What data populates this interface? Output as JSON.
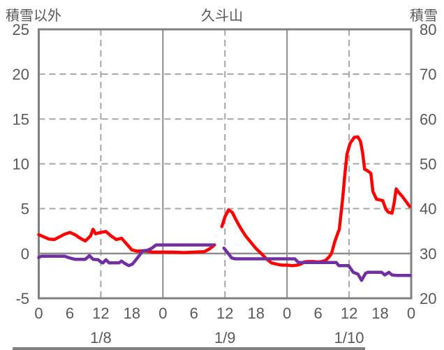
{
  "header": {
    "left_axis_title": "積雪以外",
    "title": "久斗山",
    "right_axis_title": "積雪"
  },
  "colors": {
    "red_series": "#ff0000",
    "purple_series": "#7030a0",
    "frame": "#808080",
    "grid_dashed": "#a6a6a6",
    "grid_solid": "#8c8c8c",
    "text": "#595959"
  },
  "chart_data": {
    "type": "line",
    "title": "久斗山",
    "left_axis": {
      "label": "積雪以外",
      "min": -5,
      "max": 25,
      "ticks": [
        25,
        20,
        15,
        10,
        5,
        0,
        -5
      ]
    },
    "right_axis": {
      "label": "積雪",
      "min": 20,
      "max": 80,
      "ticks": [
        80,
        70,
        60,
        50,
        40,
        30,
        20
      ]
    },
    "x_axis": {
      "total_hours": 72,
      "tick_hours": [
        0,
        6,
        12,
        18,
        24,
        30,
        36,
        42,
        48,
        54,
        60,
        66,
        72
      ],
      "tick_labels": [
        "0",
        "6",
        "12",
        "18",
        "0",
        "6",
        "12",
        "18",
        "0",
        "6",
        "12",
        "18",
        "0"
      ],
      "day_labels": [
        {
          "label": "1/8",
          "center_hour": 12
        },
        {
          "label": "1/9",
          "center_hour": 36
        },
        {
          "label": "1/10",
          "center_hour": 60
        }
      ]
    },
    "gridlines": {
      "h_dashed_left_values": [
        20,
        15,
        10,
        5
      ],
      "h_solid_left_values": [
        0
      ],
      "v_dashed_hours": [
        12,
        36,
        60
      ],
      "v_solid_hours": [
        24,
        48
      ]
    },
    "series": [
      {
        "name": "積雪以外",
        "axis": "left",
        "color": "#ff0000",
        "segments": [
          [
            [
              0,
              2.1
            ],
            [
              1,
              1.85
            ],
            [
              2,
              1.6
            ],
            [
              3,
              1.55
            ],
            [
              4,
              1.85
            ],
            [
              5,
              2.15
            ],
            [
              6,
              2.35
            ],
            [
              7,
              2.1
            ],
            [
              8,
              1.7
            ],
            [
              9,
              1.4
            ],
            [
              10,
              1.95
            ],
            [
              10.5,
              2.7
            ],
            [
              11,
              2.2
            ],
            [
              12,
              2.35
            ],
            [
              13,
              2.45
            ],
            [
              14,
              1.95
            ],
            [
              15,
              1.55
            ],
            [
              16,
              1.7
            ],
            [
              17,
              1.05
            ],
            [
              18,
              0.4
            ],
            [
              19,
              0.25
            ],
            [
              20,
              0.3
            ],
            [
              21,
              0.25
            ],
            [
              22,
              0.15
            ],
            [
              24,
              0.15
            ],
            [
              26,
              0.15
            ],
            [
              28,
              0.1
            ],
            [
              30,
              0.15
            ],
            [
              32,
              0.2
            ],
            [
              33,
              0.5
            ],
            [
              34,
              0.95
            ]
          ],
          [
            [
              35.4,
              3.0
            ],
            [
              36,
              4.1
            ],
            [
              36.7,
              4.85
            ],
            [
              37.4,
              4.6
            ],
            [
              38,
              3.9
            ],
            [
              39,
              2.85
            ],
            [
              40,
              1.95
            ],
            [
              41,
              1.25
            ],
            [
              42,
              0.55
            ],
            [
              43,
              0.0
            ],
            [
              44,
              -0.6
            ],
            [
              45,
              -1.05
            ],
            [
              46,
              -1.2
            ],
            [
              47,
              -1.3
            ],
            [
              48,
              -1.3
            ],
            [
              49,
              -1.35
            ],
            [
              50,
              -1.3
            ],
            [
              50.8,
              -1.15
            ],
            [
              51.3,
              -0.95
            ],
            [
              52,
              -0.9
            ],
            [
              53,
              -0.9
            ],
            [
              54,
              -0.95
            ],
            [
              54.8,
              -0.9
            ],
            [
              55.5,
              -0.75
            ],
            [
              56.1,
              -0.4
            ],
            [
              56.6,
              0.0
            ],
            [
              57.2,
              1.25
            ],
            [
              57.9,
              2.4
            ],
            [
              58.1,
              2.65
            ],
            [
              58.8,
              6.4
            ],
            [
              59.2,
              9.0
            ],
            [
              59.6,
              11.1
            ],
            [
              60.2,
              12.3
            ],
            [
              61.0,
              12.95
            ],
            [
              61.7,
              13.0
            ],
            [
              62.2,
              12.5
            ],
            [
              62.6,
              11.3
            ],
            [
              63.0,
              9.4
            ],
            [
              63.5,
              9.25
            ],
            [
              64.2,
              8.95
            ],
            [
              64.6,
              6.9
            ],
            [
              65.3,
              6.05
            ],
            [
              66.5,
              5.9
            ],
            [
              67.1,
              4.95
            ],
            [
              67.6,
              4.6
            ],
            [
              68.3,
              4.5
            ],
            [
              68.7,
              5.6
            ],
            [
              69.1,
              7.2
            ],
            [
              69.6,
              6.8
            ],
            [
              70.3,
              6.35
            ],
            [
              71.0,
              5.8
            ],
            [
              71.7,
              5.25
            ]
          ]
        ]
      },
      {
        "name": "積雪",
        "axis": "right",
        "color": "#7030a0",
        "segments": [
          [
            [
              0,
              29.1
            ],
            [
              0.5,
              29.4
            ],
            [
              5,
              29.4
            ],
            [
              6,
              29.0
            ],
            [
              7,
              28.7
            ],
            [
              9,
              28.7
            ],
            [
              9.8,
              29.5
            ],
            [
              10.5,
              28.7
            ],
            [
              11.5,
              28.6
            ],
            [
              12,
              28.1
            ],
            [
              12.4,
              27.9
            ],
            [
              13,
              28.6
            ],
            [
              13.6,
              27.9
            ],
            [
              15.5,
              27.9
            ],
            [
              16,
              28.3
            ],
            [
              16.6,
              27.8
            ],
            [
              17.4,
              27.3
            ],
            [
              18.1,
              27.6
            ],
            [
              19.2,
              29.2
            ],
            [
              20.1,
              30.6
            ],
            [
              21,
              30.7
            ],
            [
              21.9,
              31.2
            ],
            [
              22.7,
              31.9
            ],
            [
              33.8,
              31.9
            ]
          ],
          [
            [
              35.8,
              31.2
            ],
            [
              36.5,
              30.2
            ],
            [
              37.3,
              29.0
            ],
            [
              38,
              28.8
            ],
            [
              49.5,
              28.8
            ],
            [
              50.2,
              28.0
            ],
            [
              57.5,
              28.0
            ],
            [
              58,
              27.3
            ],
            [
              59.9,
              27.3
            ],
            [
              60.8,
              25.8
            ],
            [
              61.7,
              25.4
            ],
            [
              62.4,
              24.0
            ],
            [
              63.2,
              25.6
            ],
            [
              63.6,
              25.8
            ],
            [
              66.3,
              25.8
            ],
            [
              66.9,
              25.2
            ],
            [
              67.7,
              25.8
            ],
            [
              68.3,
              25.2
            ],
            [
              69.2,
              25.1
            ],
            [
              71.8,
              25.1
            ]
          ]
        ]
      }
    ]
  }
}
